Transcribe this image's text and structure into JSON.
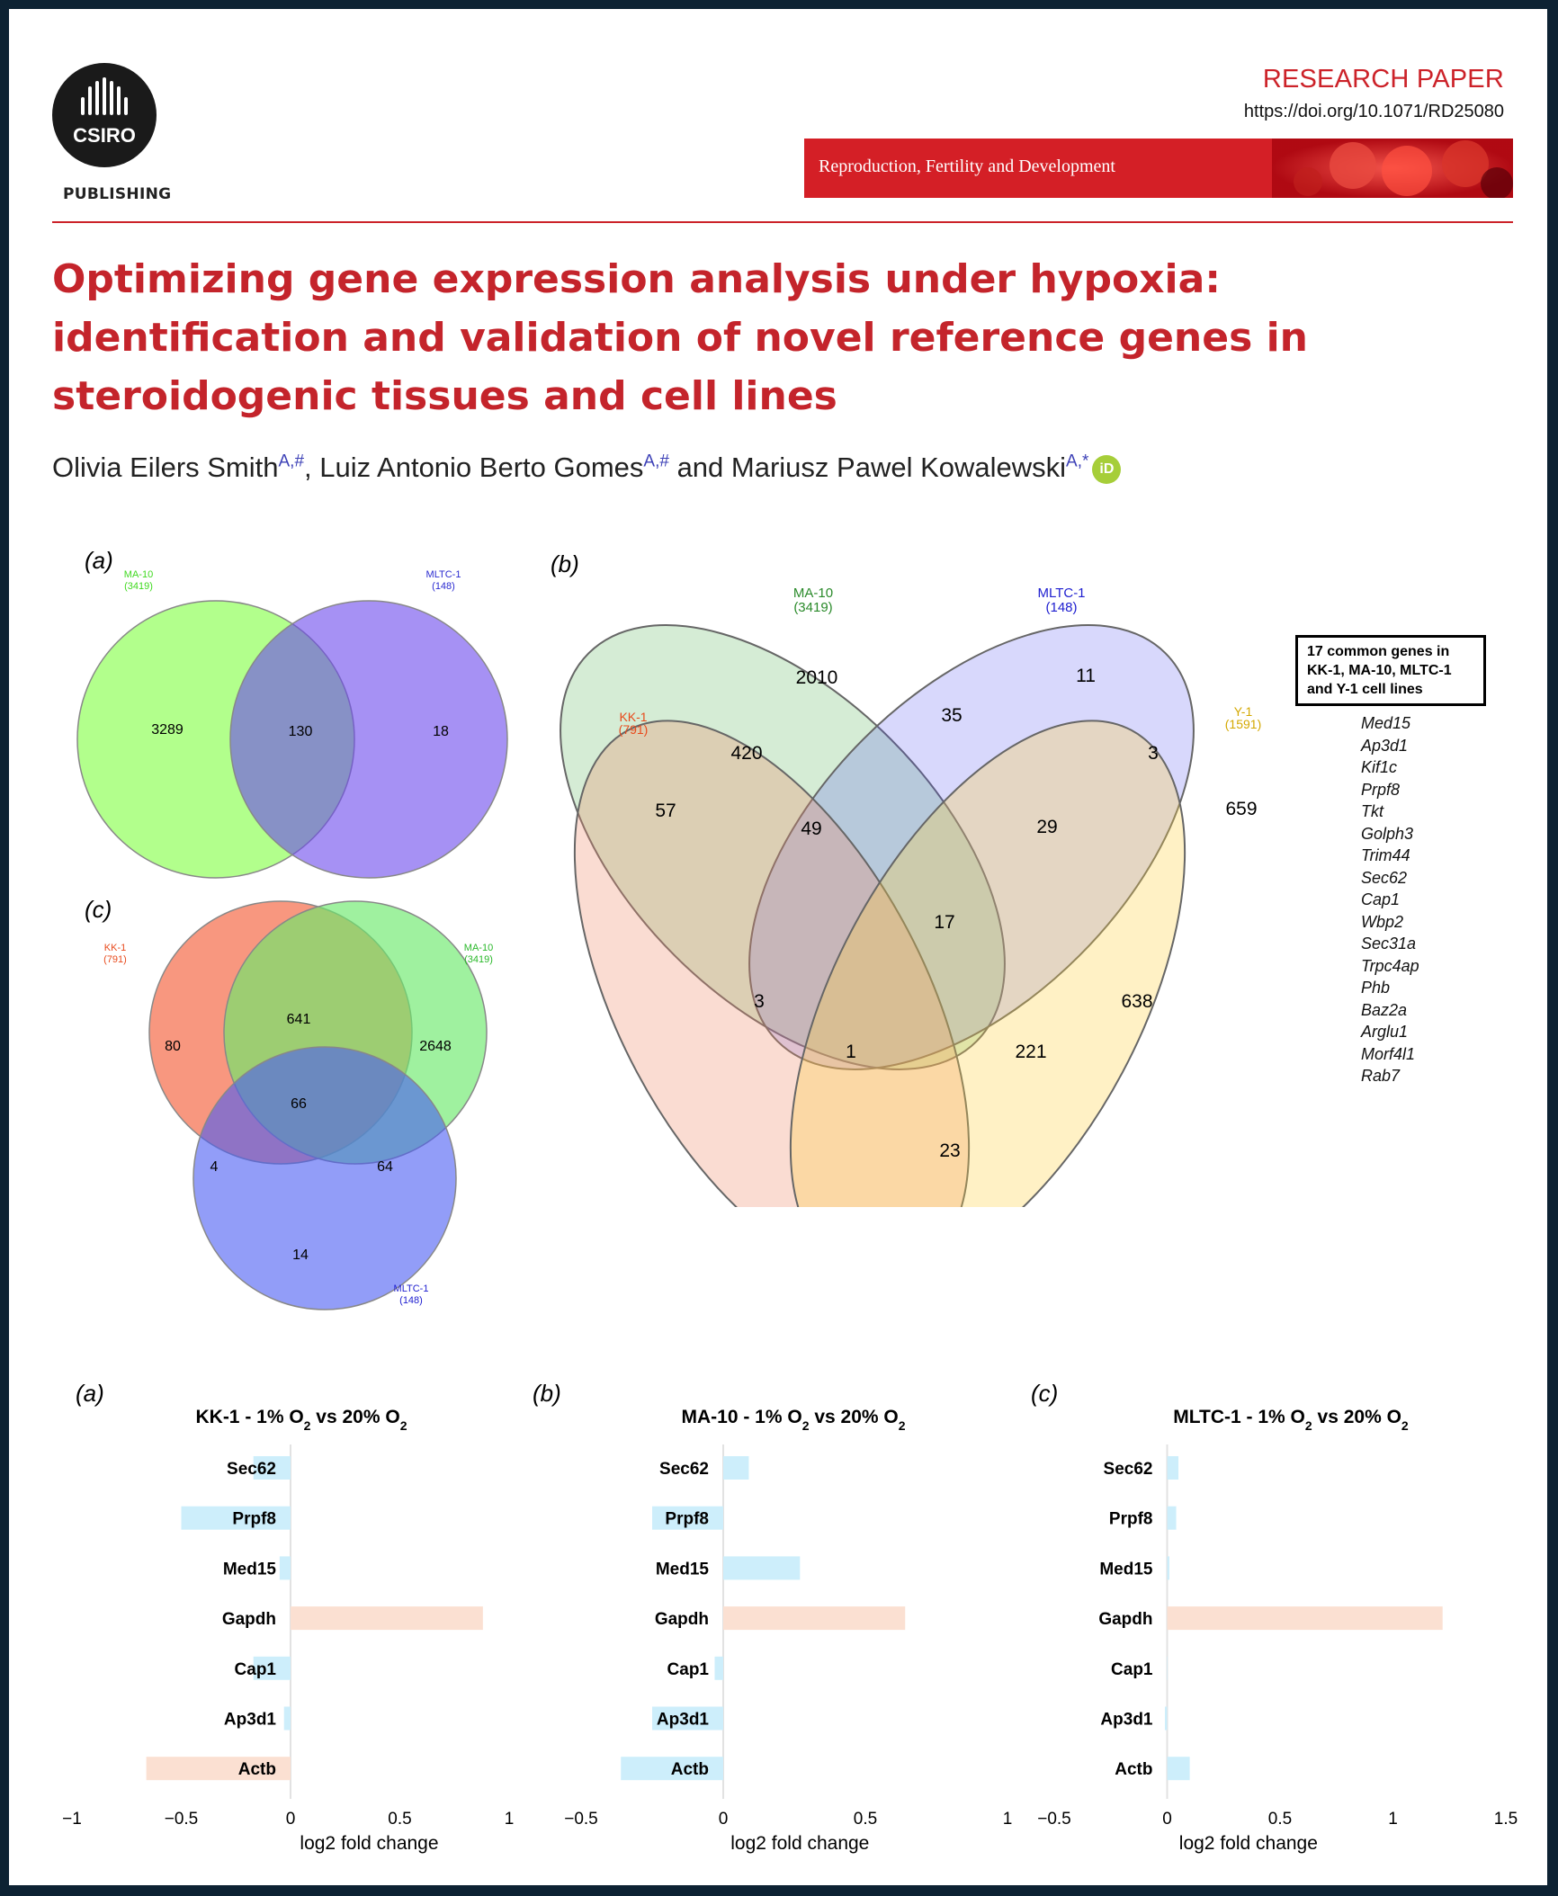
{
  "header": {
    "publisher_logo": "CSIRO",
    "publisher_sub": "PUBLISHING",
    "article_type": "RESEARCH PAPER",
    "doi": "https://doi.org/10.1071/RD25080",
    "journal": "Reproduction, Fertility and Development"
  },
  "article": {
    "title": "Optimizing gene expression analysis under hypoxia: identification and validation of novel reference genes in steroidogenic tissues and cell lines",
    "authors": [
      {
        "name": "Olivia Eilers Smith",
        "affil": "A,#",
        "sep": ", "
      },
      {
        "name": "Luiz Antonio Berto Gomes",
        "affil": "A,#",
        "sep": " and "
      },
      {
        "name": "Mariusz Pawel Kowalewski",
        "affil": "A,*",
        "sep": ""
      }
    ],
    "orcid_icon": "iD"
  },
  "colors": {
    "accent": "#c4242b",
    "banner": "#d41f26",
    "kk1": "#e84a1c",
    "ma10": "#1e9a1e",
    "mltc1": "#2020d0",
    "y1": "#d4a800"
  },
  "venn": {
    "a": {
      "label": "(a)",
      "sets": [
        {
          "name": "MA-10",
          "count": "(3419)"
        },
        {
          "name": "MLTC-1",
          "count": "(148)"
        }
      ],
      "regions": {
        "ma10_only": "3289",
        "both": "130",
        "mltc1_only": "18"
      }
    },
    "c": {
      "label": "(c)",
      "sets": [
        {
          "name": "KK-1",
          "count": "(791)"
        },
        {
          "name": "MA-10",
          "count": "(3419)"
        },
        {
          "name": "MLTC-1",
          "count": "(148)"
        }
      ],
      "regions": {
        "kk1_only": "80",
        "ma10_only": "2648",
        "mltc1_only": "14",
        "kk1_ma10": "641",
        "kk1_mltc1": "4",
        "ma10_mltc1": "64",
        "all": "66"
      }
    },
    "b": {
      "label": "(b)",
      "sets": [
        {
          "name": "KK-1",
          "count": "(791)"
        },
        {
          "name": "MA-10",
          "count": "(3419)"
        },
        {
          "name": "MLTC-1",
          "count": "(148)"
        },
        {
          "name": "Y-1",
          "count": "(1591)"
        }
      ],
      "regions": [
        "2010",
        "11",
        "35",
        "420",
        "3",
        "57",
        "49",
        "29",
        "659",
        "17",
        "3",
        "638",
        "1",
        "221",
        "23"
      ],
      "common_title": "17 common genes in KK-1, MA-10, MLTC-1 and Y-1 cell lines",
      "common_genes": [
        "Med15",
        "Ap3d1",
        "Kif1c",
        "Prpf8",
        "Tkt",
        "Golph3",
        "Trim44",
        "Sec62",
        "Cap1",
        "Wbp2",
        "Sec31a",
        "Trpc4ap",
        "Phb",
        "Baz2a",
        "Arglu1",
        "Morf4l1",
        "Rab7"
      ]
    }
  },
  "chart_data": [
    {
      "type": "bar",
      "orientation": "horizontal",
      "panel": "(a)",
      "title": "KK-1 - 1% O2 vs 20% O2",
      "title_main": "KK-1 - 1% O",
      "title_mid": " vs 20% O",
      "sub": "2",
      "categories": [
        "Sec62",
        "Prpf8",
        "Med15",
        "Gapdh",
        "Cap1",
        "Ap3d1",
        "Actb"
      ],
      "values": [
        -0.17,
        -0.5,
        -0.05,
        0.88,
        -0.17,
        -0.03,
        -0.66
      ],
      "xlim": [
        -1,
        1
      ],
      "ticks": [
        -1,
        -0.5,
        0,
        0.5,
        1
      ],
      "tick_labels": [
        "−1",
        "−0.5",
        "0",
        "0.5",
        "1"
      ],
      "xlabel": "log2 fold change"
    },
    {
      "type": "bar",
      "orientation": "horizontal",
      "panel": "(b)",
      "title": "MA-10 - 1% O2 vs 20% O2",
      "title_main": "MA-10 - 1% O",
      "title_mid": " vs 20% O",
      "sub": "2",
      "categories": [
        "Sec62",
        "Prpf8",
        "Med15",
        "Gapdh",
        "Cap1",
        "Ap3d1",
        "Actb"
      ],
      "values": [
        0.09,
        -0.25,
        0.27,
        0.64,
        -0.03,
        -0.25,
        -0.36
      ],
      "xlim": [
        -0.5,
        1
      ],
      "ticks": [
        -0.5,
        0,
        0.5,
        1
      ],
      "tick_labels": [
        "−0.5",
        "0",
        "0.5",
        "1"
      ],
      "xlabel": "log2 fold change"
    },
    {
      "type": "bar",
      "orientation": "horizontal",
      "panel": "(c)",
      "title": "MLTC-1 - 1% O2 vs 20% O2",
      "title_main": "MLTC-1 - 1% O",
      "title_mid": " vs 20% O",
      "sub": "2",
      "categories": [
        "Sec62",
        "Prpf8",
        "Med15",
        "Gapdh",
        "Cap1",
        "Ap3d1",
        "Actb"
      ],
      "values": [
        0.05,
        0.04,
        0.01,
        1.22,
        0.0,
        -0.01,
        0.1
      ],
      "xlim": [
        -0.5,
        1.5
      ],
      "ticks": [
        -0.5,
        0,
        0.5,
        1,
        1.5
      ],
      "tick_labels": [
        "−0.5",
        "0",
        "0.5",
        "1",
        "1.5"
      ],
      "xlabel": "log2 fold change"
    }
  ]
}
